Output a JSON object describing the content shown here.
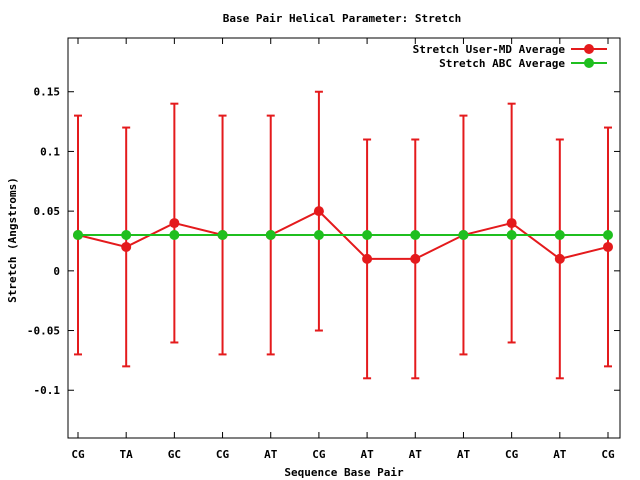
{
  "chart_data": {
    "type": "line",
    "title": "Base Pair Helical Parameter: Stretch",
    "xlabel": "Sequence Base Pair",
    "ylabel": "Stretch (Angstroms)",
    "categories": [
      "CG",
      "TA",
      "GC",
      "CG",
      "AT",
      "CG",
      "AT",
      "AT",
      "AT",
      "CG",
      "AT",
      "CG"
    ],
    "ylim": [
      -0.14,
      0.195
    ],
    "yticks": [
      -0.1,
      -0.05,
      0,
      0.05,
      0.1,
      0.15
    ],
    "ytick_labels": [
      "-0.1",
      "-0.05",
      "0",
      "0.05",
      "0.1",
      "0.15"
    ],
    "grid": false,
    "legend_position": "top-right",
    "series": [
      {
        "name": "Stretch User-MD Average",
        "color": "#e41a1c",
        "values": [
          0.03,
          0.02,
          0.04,
          0.03,
          0.03,
          0.05,
          0.01,
          0.01,
          0.03,
          0.04,
          0.01,
          0.02
        ],
        "error_low": [
          -0.07,
          -0.08,
          -0.06,
          -0.07,
          -0.07,
          -0.05,
          -0.09,
          -0.09,
          -0.07,
          -0.06,
          -0.09,
          -0.08
        ],
        "error_high": [
          0.13,
          0.12,
          0.14,
          0.13,
          0.13,
          0.15,
          0.11,
          0.11,
          0.13,
          0.14,
          0.11,
          0.12
        ]
      },
      {
        "name": "Stretch ABC Average",
        "color": "#1fbf1f",
        "values": [
          0.03,
          0.03,
          0.03,
          0.03,
          0.03,
          0.03,
          0.03,
          0.03,
          0.03,
          0.03,
          0.03,
          0.03
        ]
      }
    ]
  }
}
